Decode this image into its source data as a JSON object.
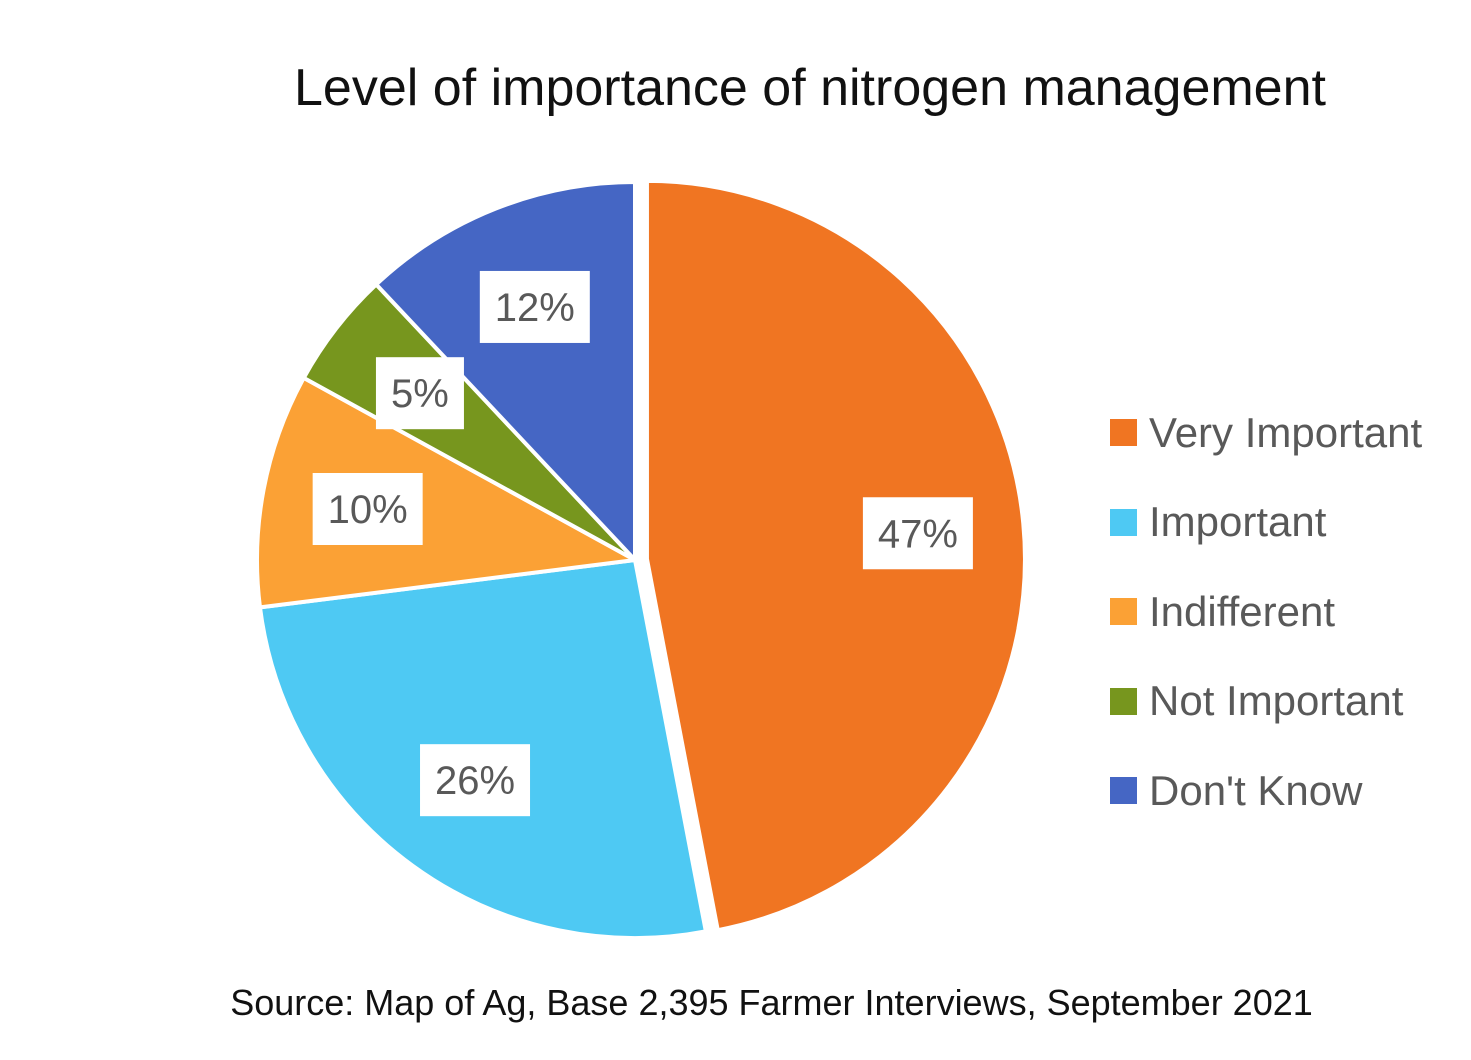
{
  "chart_data": {
    "type": "pie",
    "title": "Level of importance of nitrogen management",
    "slices": [
      {
        "name": "Very Important",
        "value": 47,
        "label": "47%",
        "color": "#F07522"
      },
      {
        "name": "Important",
        "value": 26,
        "label": "26%",
        "color": "#4EC9F3"
      },
      {
        "name": "Indifferent",
        "value": 10,
        "label": "10%",
        "color": "#FBA135"
      },
      {
        "name": "Not Important",
        "value": 5,
        "label": "5%",
        "color": "#77961E"
      },
      {
        "name": "Don't Know",
        "value": 12,
        "label": "12%",
        "color": "#4566C4"
      }
    ],
    "legend_position": "right",
    "exploded_slice": "Very Important"
  },
  "footer": {
    "source": "Source: Map of Ag, Base 2,395 Farmer Interviews, September 2021"
  }
}
